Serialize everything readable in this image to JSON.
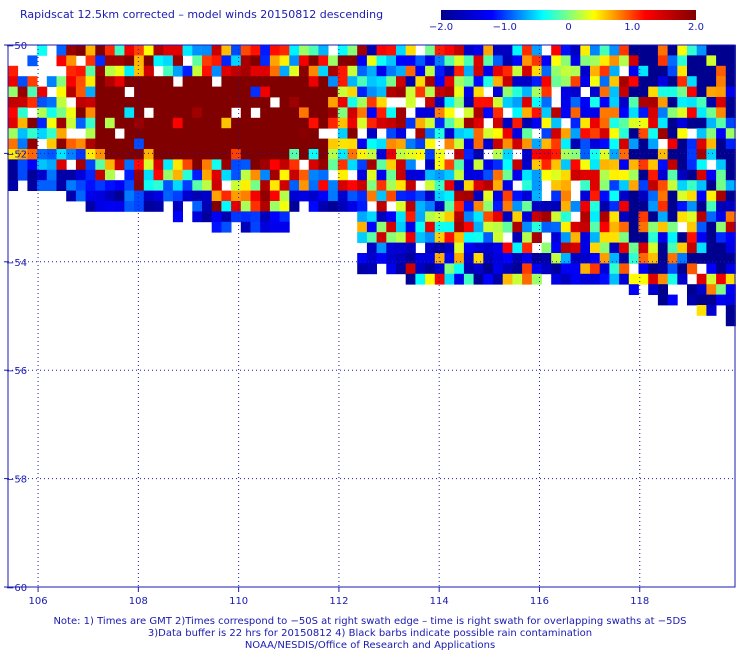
{
  "title": "Rapidscat 12.5km corrected – model winds 20150812 descending",
  "colorbar": {
    "ticks": [
      "−2.0",
      "−1.0",
      "0",
      "1.0",
      "2.0"
    ],
    "tick_values": [
      -2.0,
      -1.0,
      0,
      1.0,
      2.0
    ],
    "range": [
      -2.0,
      2.0
    ],
    "colors": [
      "#00008f",
      "#0000ff",
      "#00ffff",
      "#ffff00",
      "#ff0000",
      "#800000"
    ]
  },
  "chart_data": {
    "type": "heatmap",
    "title": "Rapidscat 12.5km corrected – model winds 20150812 descending",
    "xlabel": "",
    "ylabel": "",
    "x_ticks": [
      "106",
      "108",
      "110",
      "112",
      "114",
      "116",
      "118"
    ],
    "y_ticks": [
      "−50",
      "−52",
      "−54",
      "−56",
      "−58",
      "−60"
    ],
    "xlim": [
      105.4,
      119.9
    ],
    "ylim": [
      -60,
      -50
    ],
    "grid": true,
    "value_range": [
      -2.0,
      2.0
    ],
    "regions": [
      {
        "desc": "strong positive core",
        "lon": [
          107.2,
          111.8
        ],
        "lat": [
          -52.3,
          -50.6
        ],
        "value": 2.0
      },
      {
        "desc": "mixed swath west",
        "lon": [
          105.4,
          112.4
        ],
        "lat": [
          -53.6,
          -50.2
        ],
        "value": 0.5
      },
      {
        "desc": "mixed swath east",
        "lon": [
          112.4,
          119.9
        ],
        "lat": [
          -55.2,
          -50.0
        ],
        "value": -0.2
      }
    ]
  },
  "notes": {
    "line1": "Note: 1) Times are GMT 2)Times correspond to −50S at right swath edge – time is right swath for overlapping swaths at −5DS",
    "line2": "3)Data buffer is 22 hrs for 20150812 4) Black barbs indicate possible rain contamination",
    "line3": "NOAA/NESDIS/Office of Research and Applications"
  }
}
